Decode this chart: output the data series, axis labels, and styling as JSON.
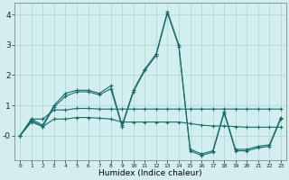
{
  "xlabel": "Humidex (Indice chaleur)",
  "x": [
    0,
    1,
    2,
    3,
    4,
    5,
    6,
    7,
    8,
    9,
    10,
    11,
    12,
    13,
    14,
    15,
    16,
    17,
    18,
    19,
    20,
    21,
    22,
    23
  ],
  "line1": [
    0.0,
    0.55,
    0.35,
    1.0,
    1.4,
    1.5,
    1.5,
    1.4,
    1.65,
    0.35,
    1.5,
    2.2,
    2.7,
    4.1,
    3.0,
    -0.45,
    -0.6,
    -0.5,
    0.8,
    -0.45,
    -0.45,
    -0.35,
    -0.3,
    0.6
  ],
  "line2": [
    0.0,
    0.5,
    0.3,
    0.95,
    1.3,
    1.45,
    1.45,
    1.35,
    1.55,
    0.3,
    1.45,
    2.15,
    2.65,
    4.05,
    2.95,
    -0.5,
    -0.65,
    -0.55,
    0.75,
    -0.5,
    -0.5,
    -0.4,
    -0.35,
    0.55
  ],
  "flat1": [
    0.0,
    0.55,
    0.55,
    0.85,
    0.85,
    0.9,
    0.9,
    0.88,
    0.88,
    0.88,
    0.88,
    0.88,
    0.88,
    0.88,
    0.88,
    0.88,
    0.88,
    0.88,
    0.88,
    0.88,
    0.88,
    0.88,
    0.88,
    0.88
  ],
  "flat2": [
    0.0,
    0.45,
    0.3,
    0.55,
    0.55,
    0.6,
    0.6,
    0.58,
    0.55,
    0.45,
    0.45,
    0.45,
    0.45,
    0.45,
    0.45,
    0.4,
    0.35,
    0.32,
    0.32,
    0.3,
    0.28,
    0.28,
    0.28,
    0.28
  ],
  "bg_color": "#d3eeee",
  "grid_color": "#aed4d4",
  "line_color": "#1a6b6b",
  "ylim": [
    -0.8,
    4.4
  ],
  "yticks": [
    0,
    1,
    2,
    3,
    4
  ],
  "ytick_labels": [
    "-0",
    "1",
    "2",
    "3",
    "4"
  ]
}
